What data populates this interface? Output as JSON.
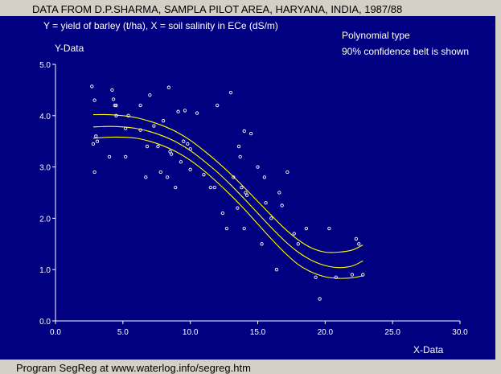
{
  "title": "DATA FROM D.P.SHARMA, SAMPLA PILOT AREA, HARYANA, INDIA, 1987/88",
  "subtitle": "Y = yield of barley (t/ha), X = soil salinity in ECe (dS/m)",
  "info_lines": [
    "Polynomial type",
    "90% confidence belt is shown"
  ],
  "footer": "Program SegReg at www.waterlog.info/segreg.htm",
  "colors": {
    "background": "#000080",
    "axes": "#ffffff",
    "points": "#ffffff",
    "curves": "#ffff00",
    "frame": "#d4d0c8"
  },
  "chart_data": {
    "type": "scatter",
    "xlabel": "X-Data",
    "ylabel": "Y-Data",
    "xlim": [
      0,
      30
    ],
    "ylim": [
      0,
      5
    ],
    "xticks": [
      "0.0",
      "5.0",
      "10.0",
      "15.0",
      "20.0",
      "25.0",
      "30.0"
    ],
    "yticks": [
      "0.0",
      "1.0",
      "2.0",
      "3.0",
      "4.0",
      "5.0"
    ],
    "grid": false,
    "series": [
      {
        "kind": "points",
        "x": [
          2.7,
          2.9,
          3.0,
          2.8,
          3.1,
          2.9,
          4.2,
          4.3,
          4.4,
          4.0,
          4.5,
          4.5,
          5.2,
          5.4,
          5.2,
          6.3,
          6.3,
          6.8,
          6.7,
          7.0,
          7.3,
          7.6,
          7.8,
          8.0,
          8.3,
          8.4,
          8.6,
          8.5,
          8.9,
          9.1,
          9.3,
          9.5,
          9.6,
          9.8,
          10.0,
          10.0,
          10.5,
          11.0,
          11.5,
          11.8,
          12.0,
          12.4,
          12.7,
          13.0,
          13.2,
          13.5,
          13.6,
          13.7,
          13.8,
          14.0,
          14.1,
          14.2,
          14.0,
          14.5,
          15.0,
          15.3,
          15.5,
          15.6,
          16.0,
          16.4,
          16.6,
          16.8,
          17.2,
          17.7,
          18.0,
          18.6,
          19.3,
          19.6,
          20.3,
          20.8,
          22.0,
          22.5,
          22.3,
          22.8
        ],
        "y": [
          4.57,
          4.3,
          3.6,
          3.45,
          3.5,
          2.9,
          4.5,
          4.32,
          4.2,
          3.2,
          4.2,
          4.0,
          3.75,
          4.0,
          3.2,
          3.72,
          4.2,
          3.4,
          2.8,
          4.4,
          3.8,
          3.4,
          2.9,
          3.9,
          2.8,
          4.55,
          3.25,
          3.3,
          2.6,
          4.08,
          3.1,
          3.5,
          4.1,
          3.45,
          3.35,
          2.95,
          4.05,
          2.85,
          2.6,
          2.6,
          4.2,
          2.1,
          1.8,
          4.45,
          2.8,
          2.2,
          3.4,
          3.2,
          2.6,
          3.7,
          2.5,
          2.45,
          1.8,
          3.65,
          3.0,
          1.5,
          2.8,
          2.3,
          2.0,
          1.0,
          2.5,
          2.25,
          2.9,
          1.7,
          1.5,
          1.8,
          0.85,
          0.43,
          1.8,
          0.85,
          0.9,
          1.5,
          1.6,
          0.9
        ]
      },
      {
        "kind": "fit",
        "x": [
          2.8,
          4,
          5,
          6,
          7,
          8,
          9,
          10,
          11,
          12,
          13,
          14,
          15,
          16,
          17,
          18,
          19,
          20,
          21,
          22,
          22.8
        ],
        "y": [
          3.78,
          3.79,
          3.78,
          3.75,
          3.69,
          3.6,
          3.48,
          3.32,
          3.12,
          2.9,
          2.65,
          2.38,
          2.1,
          1.82,
          1.56,
          1.34,
          1.18,
          1.08,
          1.04,
          1.07,
          1.17
        ]
      },
      {
        "kind": "upper-confidence",
        "x": [
          2.8,
          4,
          5,
          6,
          7,
          8,
          9,
          10,
          11,
          12,
          13,
          14,
          15,
          16,
          17,
          18,
          19,
          20,
          21,
          22,
          22.8
        ],
        "y": [
          4.02,
          4.02,
          4.0,
          3.96,
          3.89,
          3.8,
          3.68,
          3.52,
          3.32,
          3.1,
          2.86,
          2.6,
          2.33,
          2.06,
          1.8,
          1.58,
          1.42,
          1.34,
          1.34,
          1.38,
          1.48
        ]
      },
      {
        "kind": "lower-confidence",
        "x": [
          2.8,
          4,
          5,
          6,
          7,
          8,
          9,
          10,
          11,
          12,
          13,
          14,
          15,
          16,
          17,
          18,
          19,
          20,
          21,
          22,
          22.8
        ],
        "y": [
          3.56,
          3.58,
          3.58,
          3.56,
          3.5,
          3.41,
          3.29,
          3.13,
          2.93,
          2.7,
          2.45,
          2.18,
          1.89,
          1.6,
          1.33,
          1.1,
          0.95,
          0.86,
          0.83,
          0.84,
          0.88
        ]
      }
    ]
  }
}
